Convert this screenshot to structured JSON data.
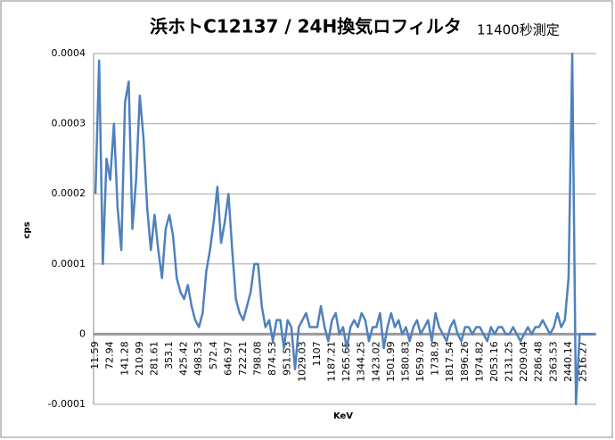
{
  "chart_data": {
    "type": "line",
    "title": "浜ホトC12137 / 24H換気ロフィルタ",
    "subtitle": "11400秒測定",
    "x_label": "KeV",
    "y_label": "cps",
    "categories": [
      "11.59",
      null,
      null,
      null,
      "72.94",
      null,
      null,
      null,
      "141.28",
      null,
      null,
      null,
      "210.99",
      null,
      null,
      null,
      "281.61",
      null,
      null,
      null,
      "353.1",
      null,
      null,
      null,
      "425.42",
      null,
      null,
      null,
      "498.53",
      null,
      null,
      null,
      "572.4",
      null,
      null,
      null,
      "646.97",
      null,
      null,
      null,
      "722.21",
      null,
      null,
      null,
      "798.08",
      null,
      null,
      null,
      "874.53",
      null,
      null,
      null,
      "951.53",
      null,
      null,
      null,
      "1029.03",
      null,
      null,
      null,
      "1107",
      null,
      null,
      null,
      "1187.21",
      null,
      null,
      null,
      "1265.65",
      null,
      null,
      null,
      "1344.25",
      null,
      null,
      null,
      "1423.02",
      null,
      null,
      null,
      "1501.99",
      null,
      null,
      null,
      "1580.83",
      null,
      null,
      null,
      "1659.78",
      null,
      null,
      null,
      "1738.9",
      null,
      null,
      null,
      "1817.54",
      null,
      null,
      null,
      "1896.26",
      null,
      null,
      null,
      "1974.82",
      null,
      null,
      null,
      "2053.16",
      null,
      null,
      null,
      "2131.25",
      null,
      null,
      null,
      "2209.04",
      null,
      null,
      null,
      "2286.48",
      null,
      null,
      null,
      "2363.53",
      null,
      null,
      null,
      "2440.14",
      null,
      null,
      null,
      "2516.27",
      null,
      null,
      null
    ],
    "series": [
      {
        "name": "cps",
        "color": "#4f81bd",
        "values": [
          0.0002,
          0.00039,
          0.0001,
          0.00025,
          0.00022,
          0.0003,
          0.00018,
          0.00012,
          0.00033,
          0.00036,
          0.00015,
          0.00022,
          0.00034,
          0.00028,
          0.00018,
          0.00012,
          0.00017,
          0.00012,
          8e-05,
          0.00015,
          0.00017,
          0.00014,
          8e-05,
          6e-05,
          5e-05,
          7e-05,
          4e-05,
          2e-05,
          1e-05,
          3e-05,
          9e-05,
          0.00012,
          0.00016,
          0.00021,
          0.00013,
          0.00016,
          0.0002,
          0.00012,
          5e-05,
          3e-05,
          2e-05,
          4e-05,
          6e-05,
          0.0001,
          0.0001,
          4e-05,
          1e-05,
          2e-05,
          -1e-05,
          2e-05,
          2e-05,
          -2e-05,
          2e-05,
          1e-05,
          -5e-05,
          1e-05,
          2e-05,
          3e-05,
          1e-05,
          1e-05,
          1e-05,
          4e-05,
          1e-05,
          -1e-05,
          2e-05,
          3e-05,
          0,
          1e-05,
          -2e-05,
          1e-05,
          2e-05,
          1e-05,
          3e-05,
          2e-05,
          -1e-05,
          1e-05,
          1e-05,
          3e-05,
          -2e-05,
          1e-05,
          3e-05,
          1e-05,
          2e-05,
          0,
          1e-05,
          -1e-05,
          1e-05,
          2e-05,
          0,
          1e-05,
          2e-05,
          -1e-05,
          3e-05,
          1e-05,
          0,
          -1e-05,
          1e-05,
          2e-05,
          0,
          -1e-05,
          1e-05,
          1e-05,
          0,
          1e-05,
          1e-05,
          0,
          -1e-05,
          1e-05,
          0,
          1e-05,
          1e-05,
          0,
          0,
          1e-05,
          0,
          -1e-05,
          0,
          1e-05,
          0,
          1e-05,
          1e-05,
          2e-05,
          1e-05,
          0,
          1e-05,
          3e-05,
          1e-05,
          2e-05,
          8e-05,
          0.0004,
          -0.0001,
          0,
          0,
          0,
          0,
          0
        ]
      }
    ],
    "ylim": [
      -0.0001,
      0.0004
    ],
    "yticks": [
      -0.0001,
      0,
      0.0001,
      0.0002,
      0.0003,
      0.0004
    ],
    "grid": true
  }
}
